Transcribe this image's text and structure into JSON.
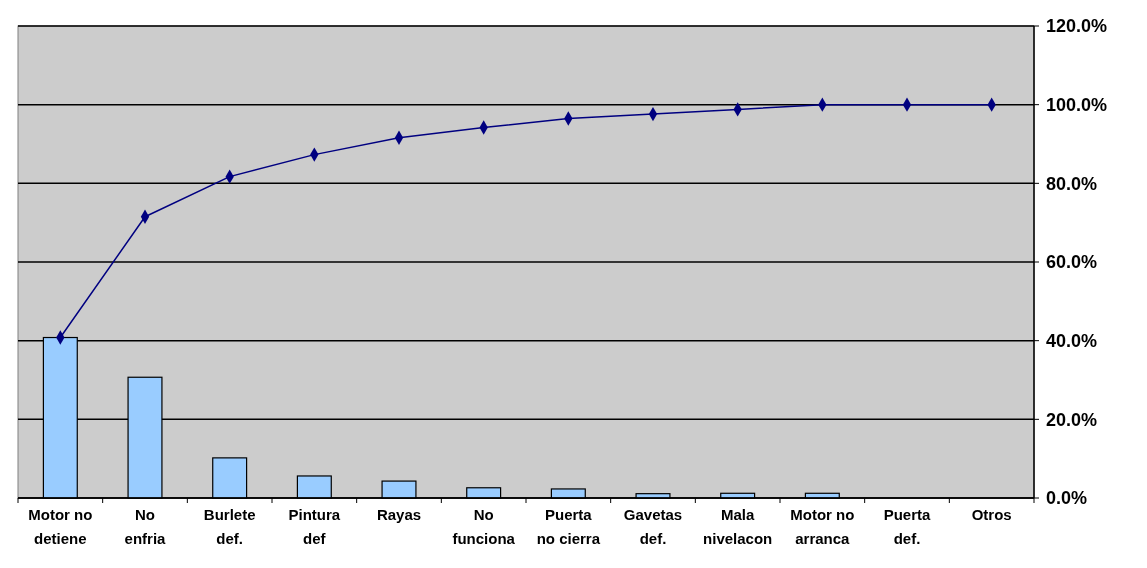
{
  "chart_data": {
    "type": "bar",
    "categories": [
      "Motor no detiene",
      "No enfria",
      "Burlete def.",
      "Pintura def",
      "Rayas",
      "No funciona",
      "Puerta no cierra",
      "Gavetas def.",
      "Mala nivelacon",
      "Motor no arranca",
      "Puerta def.",
      "Otros"
    ],
    "series": [
      {
        "color": "#99ccff",
        "values": [
          40.8,
          30.7,
          10.2,
          5.6,
          4.3,
          2.6,
          2.3,
          1.1,
          1.2,
          1.2,
          0,
          0
        ]
      },
      {
        "type": "line",
        "color": "#000080",
        "values": [
          40.8,
          71.5,
          81.7,
          87.3,
          91.6,
          94.2,
          96.5,
          97.6,
          98.8,
          100,
          100,
          100
        ],
        "marker": "diamond",
        "line_style": "solid"
      }
    ],
    "ylim": [
      0,
      120
    ],
    "yticks": [
      {
        "value": 0,
        "label": "0.0%"
      },
      {
        "value": 20,
        "label": "20.0%"
      },
      {
        "value": 40,
        "label": "40.0%"
      },
      {
        "value": 60,
        "label": "60.0%"
      },
      {
        "value": 80,
        "label": "80.0%"
      },
      {
        "value": 100,
        "label": "100.0%"
      },
      {
        "value": 120,
        "label": "120.0%"
      }
    ],
    "grid": "y"
  }
}
